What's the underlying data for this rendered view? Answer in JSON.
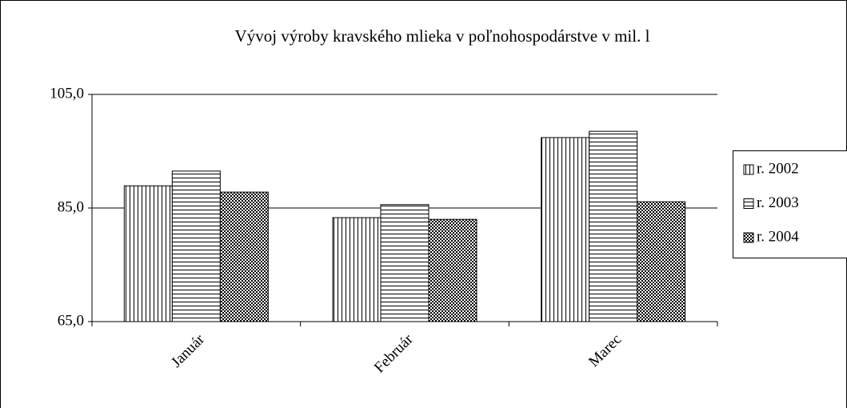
{
  "chart_data": {
    "type": "bar",
    "title": "Vývoj výroby kravského mlieka v poľnohospodárstve v mil. l",
    "categories": [
      "Január",
      "Február",
      "Marec"
    ],
    "series": [
      {
        "name": "r. 2002",
        "color": "#000000",
        "pattern": "vertical",
        "values": [
          88.9,
          83.3,
          97.4
        ]
      },
      {
        "name": "r. 2003",
        "color": "#000000",
        "pattern": "horizontal",
        "values": [
          91.5,
          85.6,
          98.5
        ]
      },
      {
        "name": "r. 2004",
        "color": "#000000",
        "pattern": "checker",
        "values": [
          87.8,
          83.0,
          86.1
        ]
      }
    ],
    "ylim": [
      65,
      105
    ],
    "yticks": [
      {
        "value": 65,
        "label": "65,0"
      },
      {
        "value": 85,
        "label": "85,0"
      },
      {
        "value": 105,
        "label": "105,0"
      }
    ],
    "grid": true,
    "legend": "right"
  }
}
